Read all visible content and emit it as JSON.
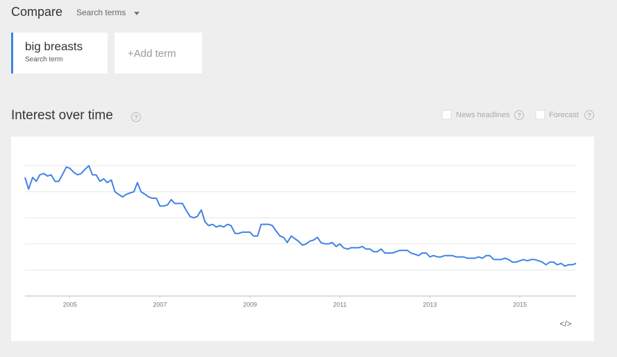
{
  "header": {
    "title": "Compare",
    "dropdown": "Search terms"
  },
  "terms": [
    {
      "label": "big breasts",
      "sublabel": "Search term"
    }
  ],
  "add_term": "+Add term",
  "section": {
    "title": "Interest over time",
    "help": "?",
    "options": [
      {
        "label": "News headlines",
        "help": "?"
      },
      {
        "label": "Forecast",
        "help": "?"
      }
    ]
  },
  "embed": "</>",
  "chart_data": {
    "type": "line",
    "x": [
      2004,
      2004.08,
      2004.17,
      2004.25,
      2004.33,
      2004.42,
      2004.5,
      2004.58,
      2004.67,
      2004.75,
      2004.83,
      2004.92,
      2005,
      2005.08,
      2005.17,
      2005.25,
      2005.33,
      2005.42,
      2005.5,
      2005.58,
      2005.67,
      2005.75,
      2005.83,
      2005.92,
      2006,
      2006.08,
      2006.17,
      2006.25,
      2006.33,
      2006.42,
      2006.5,
      2006.58,
      2006.67,
      2006.75,
      2006.83,
      2006.92,
      2007,
      2007.08,
      2007.17,
      2007.25,
      2007.33,
      2007.42,
      2007.5,
      2007.58,
      2007.67,
      2007.75,
      2007.83,
      2007.92,
      2008,
      2008.08,
      2008.17,
      2008.25,
      2008.33,
      2008.42,
      2008.5,
      2008.58,
      2008.67,
      2008.75,
      2008.83,
      2008.92,
      2009,
      2009.08,
      2009.17,
      2009.25,
      2009.33,
      2009.42,
      2009.5,
      2009.58,
      2009.67,
      2009.75,
      2009.83,
      2009.92,
      2010,
      2010.08,
      2010.17,
      2010.25,
      2010.33,
      2010.42,
      2010.5,
      2010.58,
      2010.67,
      2010.75,
      2010.83,
      2010.92,
      2011,
      2011.08,
      2011.17,
      2011.25,
      2011.33,
      2011.42,
      2011.5,
      2011.58,
      2011.67,
      2011.75,
      2011.83,
      2011.92,
      2012,
      2012.08,
      2012.17,
      2012.25,
      2012.33,
      2012.42,
      2012.5,
      2012.58,
      2012.67,
      2012.75,
      2012.83,
      2012.92,
      2013,
      2013.08,
      2013.17,
      2013.25,
      2013.33,
      2013.42,
      2013.5,
      2013.58,
      2013.67,
      2013.75,
      2013.83,
      2013.92,
      2014,
      2014.08,
      2014.17,
      2014.25,
      2014.33,
      2014.42,
      2014.5,
      2014.58,
      2014.67,
      2014.75,
      2014.83,
      2014.92,
      2015,
      2015.08,
      2015.17,
      2015.25,
      2015.33,
      2015.42,
      2015.5,
      2015.58,
      2015.67,
      2015.75,
      2015.83,
      2015.92,
      2016,
      2016.08,
      2016.17,
      2016.25
    ],
    "series": [
      {
        "name": "big breasts",
        "color": "#3f82e6",
        "values": [
          91,
          82,
          91,
          88,
          93,
          94,
          92,
          93,
          88,
          88,
          93,
          99,
          98,
          95,
          93,
          94,
          97,
          100,
          93,
          93,
          88,
          90,
          87,
          89,
          80,
          78,
          76,
          78,
          79,
          80,
          87,
          80,
          78,
          76,
          75,
          75,
          69,
          69,
          70,
          74,
          71,
          71,
          71,
          66,
          61,
          60,
          61,
          66,
          57,
          54,
          55,
          53,
          54,
          53,
          55,
          54,
          48,
          48,
          49,
          49,
          49,
          46,
          46,
          55,
          55,
          55,
          54,
          50,
          46,
          45,
          41,
          46,
          44,
          42,
          39,
          40,
          42,
          43,
          45,
          41,
          40,
          40,
          41,
          38,
          40,
          37,
          36,
          37,
          37,
          37,
          38,
          36,
          36,
          34,
          34,
          36,
          33,
          33,
          33,
          34,
          35,
          35,
          35,
          33,
          32,
          31,
          33,
          33,
          30,
          31,
          30,
          30,
          31,
          31,
          31,
          30,
          30,
          30,
          29,
          29,
          29,
          30,
          29,
          31,
          31,
          28,
          28,
          28,
          29,
          28,
          26,
          26,
          27,
          28,
          27,
          28,
          28,
          27,
          26,
          24,
          26,
          26,
          24,
          25,
          23,
          24,
          24,
          25
        ]
      }
    ],
    "xlim": [
      2004,
      2016.25
    ],
    "xticks": [
      2005,
      2007,
      2009,
      2011,
      2013,
      2015
    ],
    "ylim": [
      0,
      100
    ],
    "ygrid": [
      20,
      40,
      60,
      80,
      100
    ],
    "grid": true
  }
}
